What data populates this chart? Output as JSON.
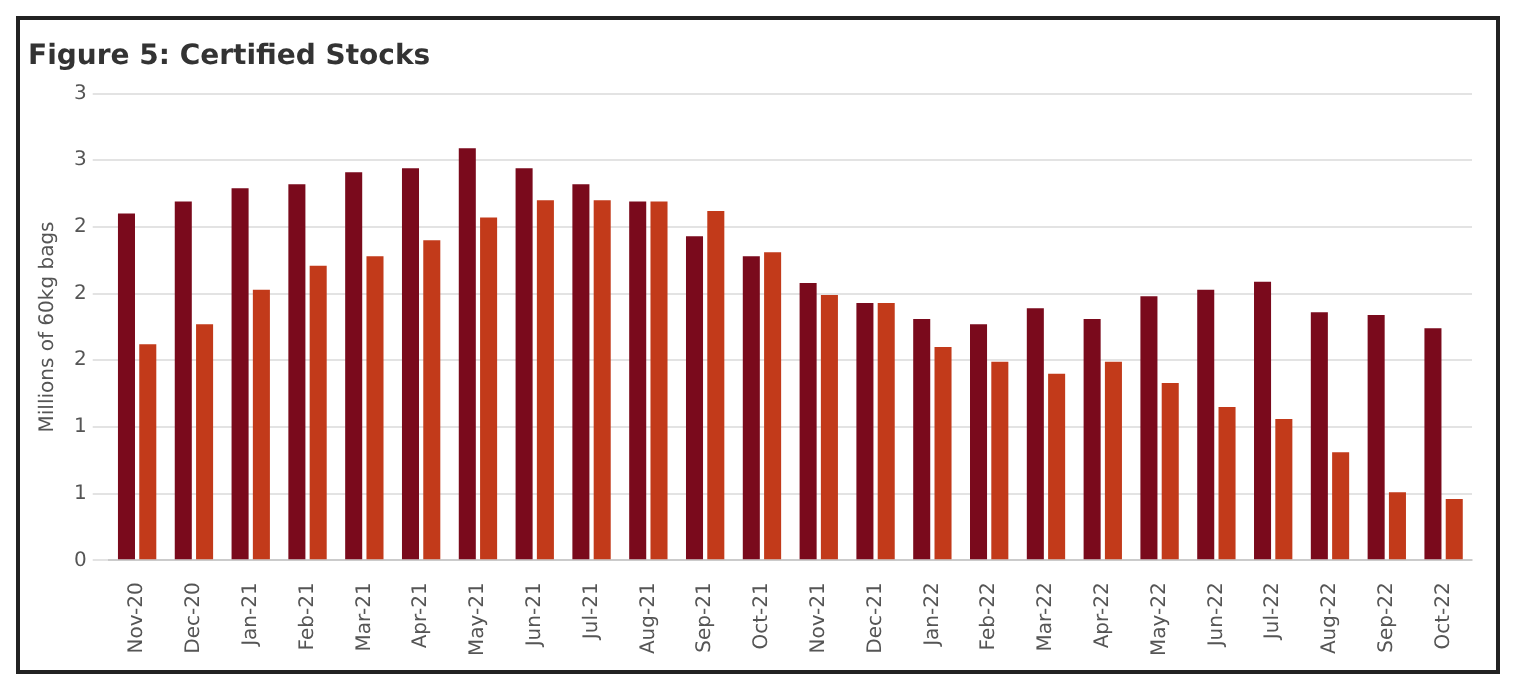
{
  "chart_data": {
    "type": "bar",
    "title": "Figure 5: Certified Stocks",
    "ylabel": "Millions of 60kg bags",
    "categories": [
      "Nov-20",
      "Dec-20",
      "Jan-21",
      "Feb-21",
      "Mar-21",
      "Apr-21",
      "May-21",
      "Jun-21",
      "Jul-21",
      "Aug-21",
      "Sep-21",
      "Oct-21",
      "Nov-21",
      "Dec-21",
      "Jan-22",
      "Feb-22",
      "Mar-22",
      "Apr-22",
      "May-22",
      "Jun-22",
      "Jul-22",
      "Aug-22",
      "Sep-22",
      "Oct-22"
    ],
    "series": [
      {
        "color": "#7a0a1c",
        "values": [
          2.6,
          2.69,
          2.79,
          2.82,
          2.91,
          2.94,
          3.09,
          2.94,
          2.82,
          2.69,
          2.43,
          2.28,
          2.08,
          1.93,
          1.81,
          1.77,
          1.89,
          1.81,
          1.98,
          2.03,
          2.09,
          1.86,
          1.84,
          1.74
        ]
      },
      {
        "color": "#c23a1a",
        "values": [
          1.62,
          1.77,
          2.03,
          2.21,
          2.28,
          2.4,
          2.57,
          2.7,
          2.7,
          2.69,
          2.62,
          2.31,
          1.99,
          1.93,
          1.6,
          1.49,
          1.4,
          1.49,
          1.33,
          1.15,
          1.06,
          0.81,
          0.51,
          0.46
        ]
      }
    ],
    "ylim": [
      0,
      3.5
    ],
    "yticks": [
      {
        "value": 0,
        "label": "0"
      },
      {
        "value": 0.5,
        "label": "1"
      },
      {
        "value": 1,
        "label": "1"
      },
      {
        "value": 1.5,
        "label": "2"
      },
      {
        "value": 2,
        "label": "2"
      },
      {
        "value": 2.5,
        "label": "2"
      },
      {
        "value": 3,
        "label": "3"
      },
      {
        "value": 3.5,
        "label": "3"
      }
    ],
    "grid": "y"
  }
}
